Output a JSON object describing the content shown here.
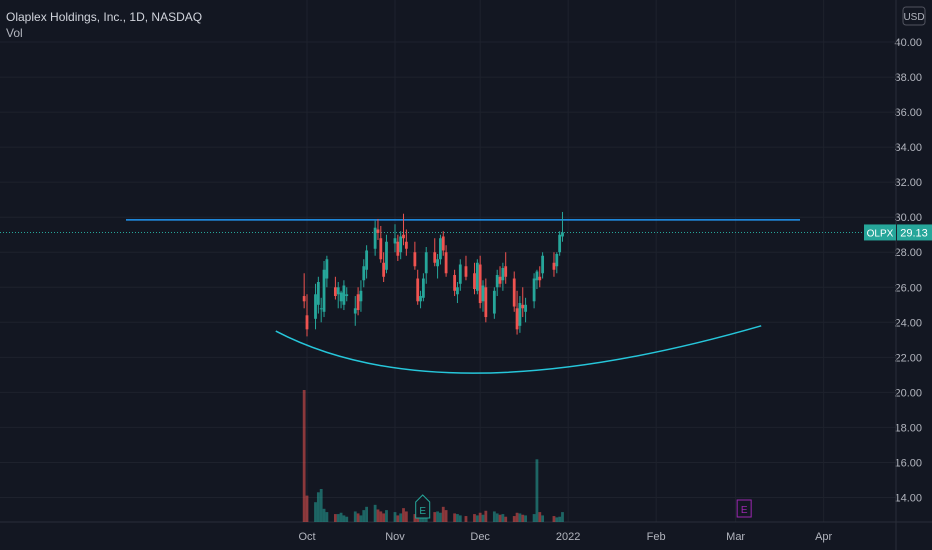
{
  "header": {
    "title": "Olaplex Holdings, Inc., 1D, NASDAQ",
    "indicator": "Vol"
  },
  "currency": "USD",
  "last_price": {
    "symbol": "OLPX",
    "value": "29.13"
  },
  "earnings_marker": "E",
  "colors": {
    "background": "#131722",
    "grid": "#1e222d",
    "text": "#b2b5be",
    "up": "#26a69a",
    "down": "#ef5350",
    "hline": "#2196f3",
    "cup": "#26c6da",
    "badge": "#26a69a",
    "earnings_upcoming": "#9c27b0"
  },
  "chart_data": {
    "type": "candlestick",
    "y_ticks": [
      "14.00",
      "16.00",
      "18.00",
      "20.00",
      "22.00",
      "24.00",
      "26.00",
      "28.00",
      "30.00",
      "32.00",
      "34.00",
      "36.00",
      "38.00",
      "40.00"
    ],
    "x_ticks": [
      "Oct",
      "Nov",
      "Dec",
      "2022",
      "Feb",
      "Mar",
      "Apr"
    ],
    "ylim": [
      12.6,
      42.4
    ],
    "annotations": {
      "horizontal_line": 29.85,
      "last_price": 29.13,
      "cup_curve": {
        "start": [
          "2021-09-20",
          23.5
        ],
        "bottom": [
          "2021-12-01",
          21.1
        ],
        "end": [
          "2022-03-10",
          23.8
        ]
      }
    },
    "ohlc": [
      [
        "2021-09-30",
        25.5,
        26.8,
        24.8,
        25.2
      ],
      [
        "2021-10-01",
        24.4,
        25.6,
        23.2,
        23.6
      ],
      [
        "2021-10-04",
        24.2,
        26.2,
        23.6,
        25.6
      ],
      [
        "2021-10-05",
        25.0,
        26.6,
        24.5,
        26.3
      ],
      [
        "2021-10-06",
        24.8,
        25.4,
        24.0,
        24.8
      ],
      [
        "2021-10-07",
        24.6,
        27.5,
        24.3,
        27.0
      ],
      [
        "2021-10-08",
        26.5,
        27.8,
        26.0,
        27.6
      ],
      [
        "2021-10-11",
        26.0,
        26.6,
        25.3,
        25.5
      ],
      [
        "2021-10-12",
        25.6,
        26.3,
        24.8,
        26.0
      ],
      [
        "2021-10-13",
        25.2,
        25.8,
        24.8,
        25.7
      ],
      [
        "2021-10-14",
        25.0,
        26.4,
        24.7,
        26.1
      ],
      [
        "2021-10-15",
        25.5,
        26.0,
        25.2,
        25.6
      ],
      [
        "2021-10-18",
        24.5,
        25.5,
        23.8,
        24.8
      ],
      [
        "2021-10-19",
        25.6,
        26.0,
        24.4,
        24.7
      ],
      [
        "2021-10-20",
        25.2,
        26.4,
        24.6,
        25.8
      ],
      [
        "2021-10-21",
        26.4,
        27.6,
        26.0,
        27.2
      ],
      [
        "2021-10-22",
        27.0,
        28.4,
        26.5,
        28.1
      ],
      [
        "2021-10-25",
        28.2,
        29.8,
        27.8,
        29.4
      ],
      [
        "2021-10-26",
        29.3,
        29.9,
        28.7,
        29.1
      ],
      [
        "2021-10-27",
        28.8,
        29.5,
        27.4,
        27.6
      ],
      [
        "2021-10-28",
        27.4,
        28.0,
        26.3,
        26.6
      ],
      [
        "2021-10-29",
        27.0,
        29.0,
        26.8,
        28.6
      ],
      [
        "2021-11-01",
        28.5,
        29.6,
        28.0,
        28.8
      ],
      [
        "2021-11-02",
        28.6,
        29.0,
        27.5,
        27.8
      ],
      [
        "2021-11-03",
        28.0,
        29.2,
        27.6,
        28.9
      ],
      [
        "2021-11-04",
        29.0,
        30.2,
        28.4,
        28.8
      ],
      [
        "2021-11-05",
        28.6,
        29.3,
        27.8,
        28.2
      ],
      [
        "2021-11-08",
        28.0,
        28.6,
        27.0,
        27.2
      ],
      [
        "2021-11-09",
        26.5,
        27.0,
        25.0,
        25.2
      ],
      [
        "2021-11-10",
        25.2,
        25.8,
        24.8,
        25.5
      ],
      [
        "2021-11-11",
        25.4,
        26.8,
        25.2,
        26.5
      ],
      [
        "2021-11-12",
        26.8,
        28.3,
        26.2,
        28.0
      ],
      [
        "2021-11-15",
        28.0,
        28.8,
        27.2,
        27.4
      ],
      [
        "2021-11-16",
        27.2,
        27.9,
        26.5,
        27.6
      ],
      [
        "2021-11-17",
        27.6,
        29.0,
        27.3,
        28.8
      ],
      [
        "2021-11-18",
        28.9,
        29.2,
        27.8,
        28.1
      ],
      [
        "2021-11-19",
        28.0,
        28.4,
        26.6,
        26.8
      ],
      [
        "2021-11-22",
        26.7,
        27.0,
        25.5,
        25.8
      ],
      [
        "2021-11-23",
        25.6,
        26.3,
        25.1,
        26.0
      ],
      [
        "2021-11-24",
        26.2,
        27.6,
        25.8,
        27.3
      ],
      [
        "2021-11-26",
        27.2,
        27.8,
        26.4,
        26.6
      ],
      [
        "2021-11-29",
        26.8,
        27.4,
        25.6,
        25.9
      ],
      [
        "2021-11-30",
        25.8,
        27.6,
        25.6,
        27.4
      ],
      [
        "2021-12-01",
        27.3,
        27.8,
        24.8,
        25.1
      ],
      [
        "2021-12-02",
        25.2,
        26.4,
        24.6,
        26.1
      ],
      [
        "2021-12-03",
        26.0,
        26.5,
        24.0,
        24.3
      ],
      [
        "2021-12-06",
        24.5,
        26.0,
        24.2,
        25.8
      ],
      [
        "2021-12-07",
        26.0,
        27.0,
        25.5,
        26.7
      ],
      [
        "2021-12-08",
        26.6,
        27.2,
        26.0,
        26.2
      ],
      [
        "2021-12-09",
        26.4,
        27.4,
        25.8,
        27.1
      ],
      [
        "2021-12-10",
        27.2,
        28.0,
        26.2,
        26.6
      ],
      [
        "2021-12-13",
        26.5,
        26.9,
        24.6,
        24.9
      ],
      [
        "2021-12-14",
        24.8,
        25.8,
        23.3,
        23.6
      ],
      [
        "2021-12-15",
        23.8,
        25.5,
        23.4,
        25.1
      ],
      [
        "2021-12-16",
        25.0,
        26.0,
        24.3,
        24.8
      ],
      [
        "2021-12-17",
        24.6,
        25.4,
        24.0,
        25.0
      ],
      [
        "2021-12-20",
        25.2,
        26.8,
        24.8,
        26.5
      ],
      [
        "2021-12-21",
        26.4,
        27.0,
        25.9,
        26.9
      ],
      [
        "2021-12-22",
        26.6,
        27.2,
        26.0,
        26.4
      ],
      [
        "2021-12-23",
        26.8,
        28.0,
        26.5,
        27.8
      ],
      [
        "2021-12-27",
        27.4,
        28.0,
        26.6,
        27.0
      ],
      [
        "2021-12-28",
        27.2,
        28.0,
        26.8,
        27.9
      ],
      [
        "2021-12-29",
        28.0,
        29.2,
        27.8,
        29.0
      ],
      [
        "2021-12-30",
        28.9,
        30.3,
        28.6,
        29.13
      ]
    ],
    "volume_rel": [
      20,
      4,
      3,
      4.5,
      5,
      2,
      1.5,
      1.2,
      1.2,
      1.4,
      1,
      0.8,
      1.6,
      1.3,
      1,
      1.8,
      2.3,
      2.6,
      1.9,
      1.6,
      1.3,
      1.8,
      1.5,
      1,
      1.3,
      2.1,
      1.6,
      1.2,
      1.1,
      0.9,
      0.8,
      1.2,
      1.5,
      1.6,
      1.4,
      2.3,
      1.8,
      1.3,
      1.2,
      1,
      0.9,
      1.2,
      1,
      1.4,
      1.1,
      1.7,
      1.6,
      1.3,
      1.1,
      1.2,
      0.8,
      0.9,
      1.4,
      1.3,
      1.1,
      1,
      1.2,
      9.5,
      1.5,
      1,
      0.9,
      0.7,
      0.8,
      1.5
    ]
  }
}
